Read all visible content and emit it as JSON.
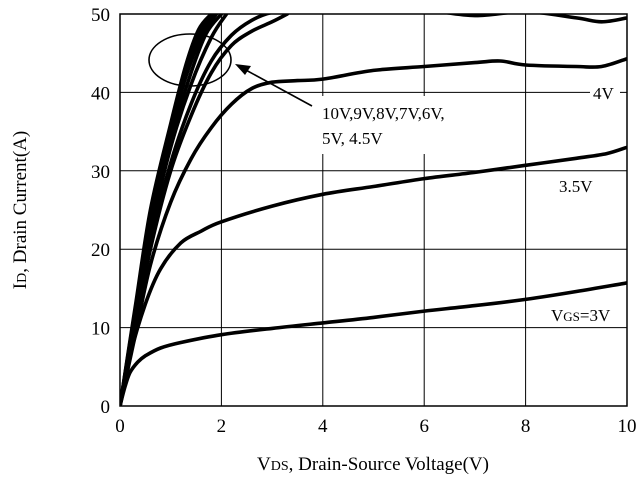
{
  "chart_data": {
    "type": "line",
    "xlabel": "VDS, Drain-Source Voltage(V)",
    "xlabel_main": "V",
    "xlabel_sub": "DS",
    "xlabel_rest": ", Drain-Source Voltage(V)",
    "ylabel": "ID, Drain Current(A)",
    "ylabel_main": "I",
    "ylabel_sub": "D",
    "ylabel_rest": ", Drain Current(A)",
    "xlim": [
      0,
      10
    ],
    "ylim": [
      0,
      50
    ],
    "xticks": [
      0,
      2,
      4,
      6,
      8,
      10
    ],
    "yticks": [
      0,
      10,
      20,
      30,
      40,
      50
    ],
    "grid": true,
    "annotations": {
      "vgs_main": "V",
      "vgs_sub": "GS",
      "vgs_rest": "=3V",
      "v35": "3.5V",
      "v4": "4V",
      "multi_line1": "10V,9V,8V,7V,6V,",
      "multi_line2": "5V, 4.5V"
    },
    "series": [
      {
        "name": "VGS=3V",
        "x": [
          0,
          0.1,
          0.2,
          0.35,
          0.5,
          0.8,
          1.2,
          2,
          3,
          4,
          5,
          6,
          7,
          8,
          9,
          10
        ],
        "y": [
          0,
          2.5,
          4.3,
          5.6,
          6.4,
          7.4,
          8.1,
          9.1,
          9.9,
          10.6,
          11.3,
          12.1,
          12.8,
          13.6,
          14.6,
          15.7
        ]
      },
      {
        "name": "3.5V",
        "x": [
          0,
          0.2,
          0.5,
          0.8,
          1.2,
          1.6,
          2,
          3,
          4,
          5,
          6,
          7,
          8,
          9,
          9.6,
          10
        ],
        "y": [
          0,
          6.5,
          13,
          17.5,
          20.8,
          22.3,
          23.5,
          25.5,
          27,
          28,
          29,
          29.8,
          30.7,
          31.6,
          32.2,
          33
        ]
      },
      {
        "name": "4V",
        "x": [
          0,
          0.3,
          0.6,
          1,
          1.4,
          1.8,
          2.2,
          2.6,
          3,
          3.5,
          4,
          5,
          6,
          7,
          7.5,
          8,
          9,
          9.5,
          10
        ],
        "y": [
          0,
          9,
          18,
          26,
          31.5,
          35.5,
          38.5,
          40.5,
          41.3,
          41.5,
          41.7,
          42.8,
          43.3,
          43.8,
          44,
          43.5,
          43.3,
          43.3,
          44.3
        ]
      },
      {
        "name": "4.5V",
        "x": [
          0,
          0.3,
          0.6,
          1,
          1.4,
          1.8,
          2.2,
          2.6,
          3,
          3.3
        ],
        "y": [
          0,
          10,
          20,
          30,
          37,
          42.5,
          46,
          47.8,
          49,
          50
        ]
      },
      {
        "name": "5V",
        "x": [
          0,
          0.3,
          0.6,
          1,
          1.4,
          1.8,
          2.2,
          2.6,
          3,
          3.5,
          4,
          5,
          6,
          7,
          8,
          9,
          9.5,
          10
        ],
        "y": [
          0,
          10.5,
          21,
          31,
          38.5,
          44,
          47.3,
          49.2,
          50.2,
          50.5,
          50.6,
          50.6,
          50.5,
          49.8,
          50.3,
          49.5,
          49,
          49.5
        ]
      },
      {
        "name": "6V",
        "x": [
          0,
          0.3,
          0.6,
          1,
          1.4,
          1.8,
          2.1
        ],
        "y": [
          0,
          11,
          22,
          33,
          41,
          47,
          50
        ]
      },
      {
        "name": "7V",
        "x": [
          0,
          0.3,
          0.6,
          1,
          1.4,
          1.7,
          2
        ],
        "y": [
          0,
          11.5,
          23,
          34,
          42.5,
          47.5,
          50
        ]
      },
      {
        "name": "8V",
        "x": [
          0,
          0.3,
          0.6,
          1,
          1.3,
          1.6,
          1.9
        ],
        "y": [
          0,
          12,
          24,
          35,
          42,
          47,
          50
        ]
      },
      {
        "name": "9V",
        "x": [
          0,
          0.3,
          0.6,
          1,
          1.3,
          1.6,
          1.85
        ],
        "y": [
          0,
          12.3,
          24.5,
          35.5,
          43,
          47.8,
          50
        ]
      },
      {
        "name": "10V",
        "x": [
          0,
          0.3,
          0.6,
          1,
          1.3,
          1.55,
          1.8
        ],
        "y": [
          0,
          12.6,
          25,
          36,
          43.5,
          48,
          50
        ]
      }
    ]
  }
}
